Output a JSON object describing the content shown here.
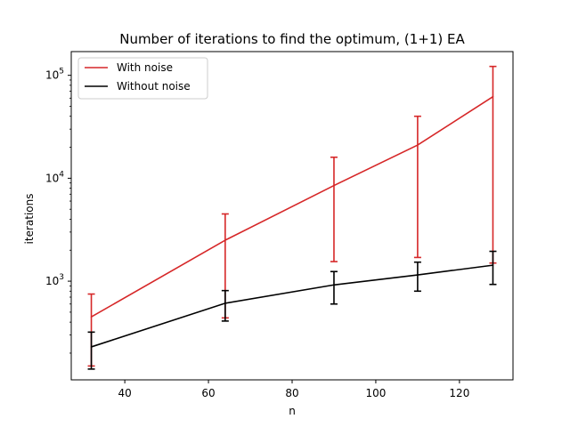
{
  "chart_data": {
    "type": "line",
    "title": "Number of iterations to find the optimum, (1+1) EA",
    "xlabel": "n",
    "ylabel": "iterations",
    "xlim": [
      27.2,
      132.8
    ],
    "ylim": [
      110,
      170000
    ],
    "yscale": "log",
    "grid": false,
    "legend_position": "top-left",
    "x_ticks": [
      40,
      60,
      80,
      100,
      120
    ],
    "y_ticks": [
      {
        "value": 1000,
        "base": "10",
        "exp": "3"
      },
      {
        "value": 10000,
        "base": "10",
        "exp": "4"
      },
      {
        "value": 100000,
        "base": "10",
        "exp": "5"
      }
    ],
    "series": [
      {
        "name": "With noise",
        "color": "#d62728",
        "x": [
          32,
          64,
          90,
          110,
          128
        ],
        "y": [
          450,
          2500,
          8500,
          21000,
          62000
        ],
        "err_low": [
          150,
          440,
          1550,
          1700,
          1500
        ],
        "err_high": [
          750,
          4500,
          16000,
          40000,
          122000
        ]
      },
      {
        "name": "Without noise",
        "color": "#000000",
        "x": [
          32,
          64,
          90,
          110,
          128
        ],
        "y": [
          230,
          610,
          920,
          1150,
          1430
        ],
        "err_low": [
          140,
          410,
          600,
          800,
          930
        ],
        "err_high": [
          320,
          810,
          1240,
          1530,
          1950
        ]
      }
    ]
  }
}
